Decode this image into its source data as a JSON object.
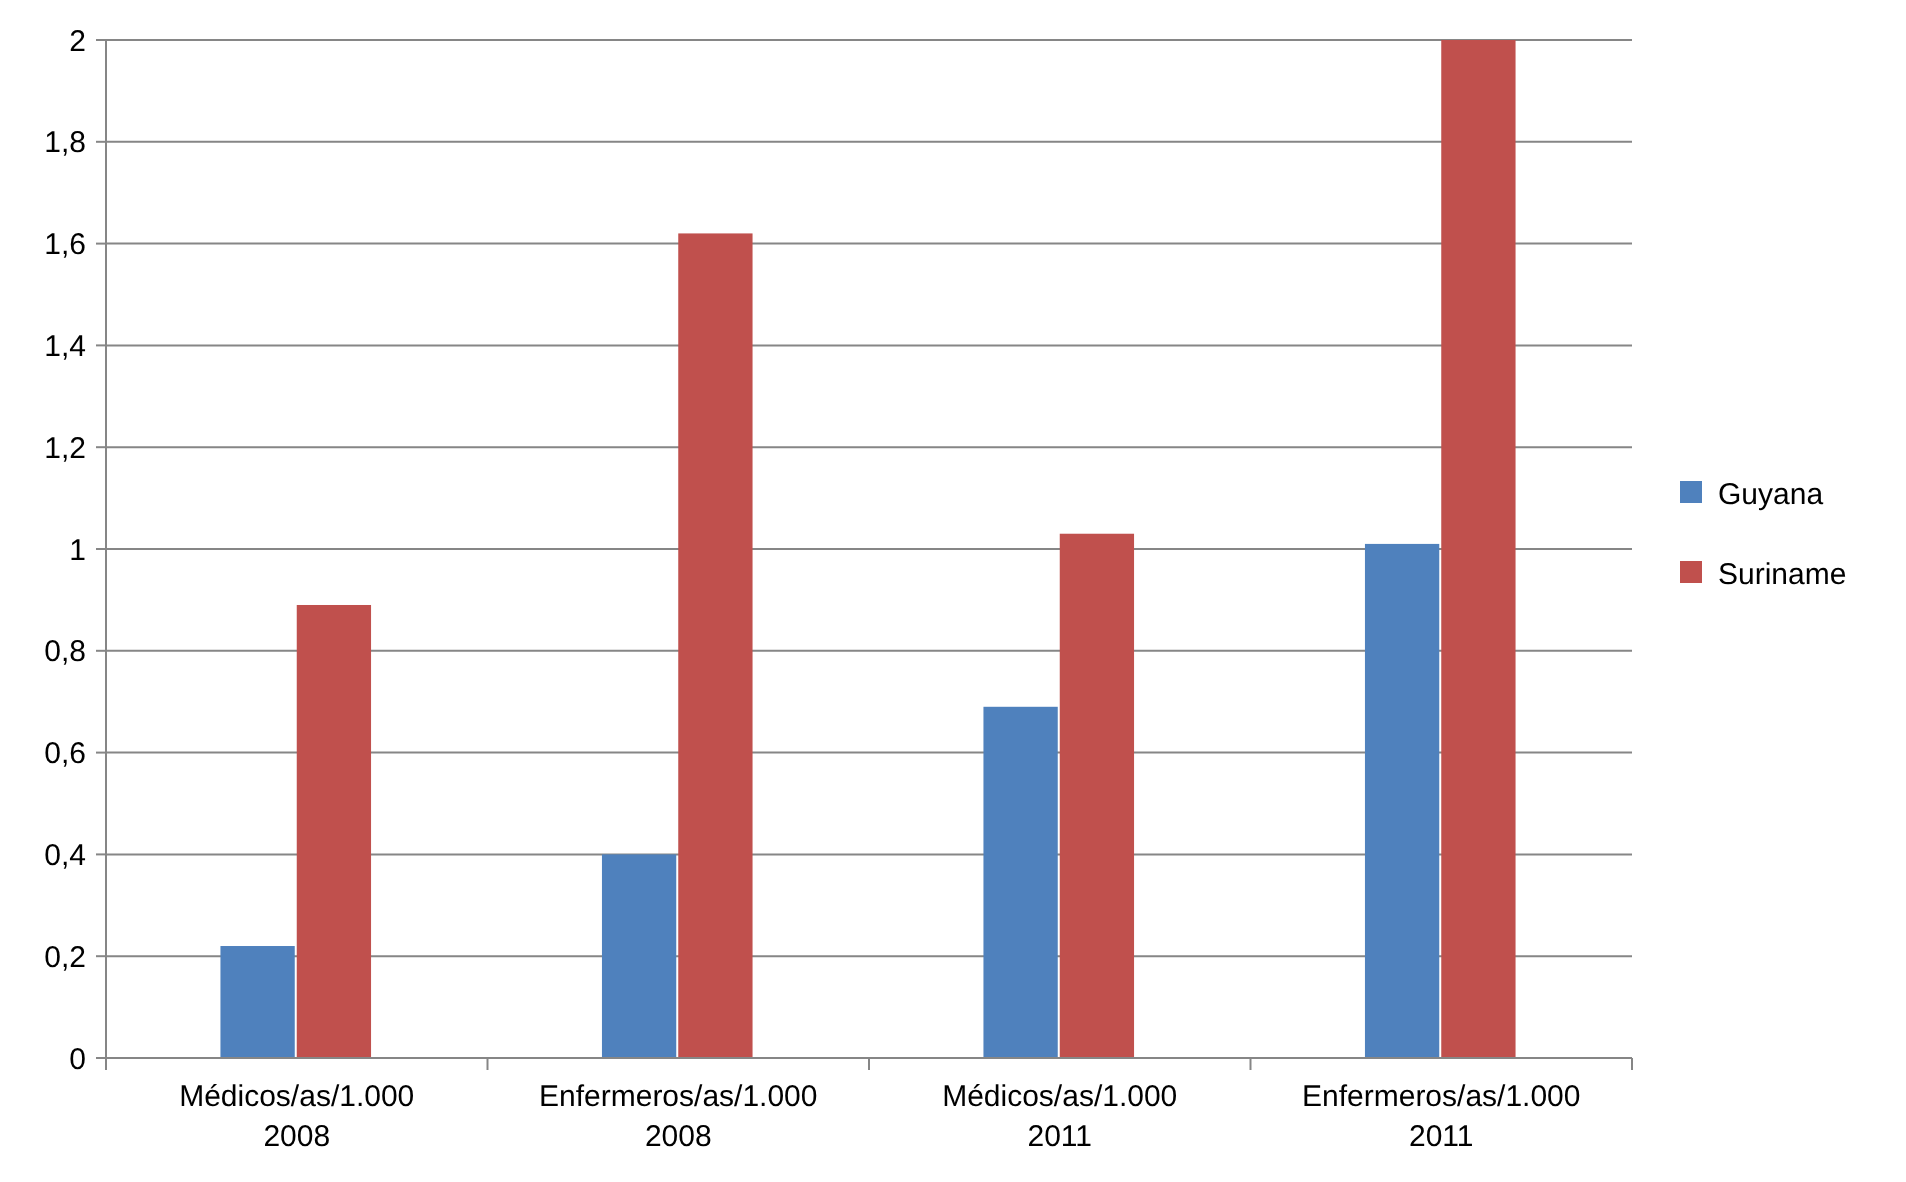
{
  "chart_data": {
    "type": "bar",
    "categories": [
      "Médicos/as/1.000\n2008",
      "Enfermeros/as/1.000\n2008",
      "Médicos/as/1.000\n2011",
      "Enfermeros/as/1.000\n2011"
    ],
    "series": [
      {
        "name": "Guyana",
        "color": "#4f81bd",
        "values": [
          0.22,
          0.4,
          0.69,
          1.01
        ]
      },
      {
        "name": "Suriname",
        "color": "#c0504d",
        "values": [
          0.89,
          1.62,
          1.03,
          2.0
        ]
      }
    ],
    "ylim": [
      0,
      2
    ],
    "yticks": [
      0,
      {
        "value": 0.2,
        "label": "0,2"
      },
      {
        "value": 0.4,
        "label": "0,4"
      },
      {
        "value": 0.6,
        "label": "0,6"
      },
      {
        "value": 0.8,
        "label": "0,8"
      },
      1,
      {
        "value": 1.2,
        "label": "1,2"
      },
      {
        "value": 1.4,
        "label": "1,4"
      },
      {
        "value": 1.6,
        "label": "1,6"
      },
      {
        "value": 1.8,
        "label": "1,8"
      },
      2
    ],
    "grid": "y",
    "legend": "right"
  }
}
